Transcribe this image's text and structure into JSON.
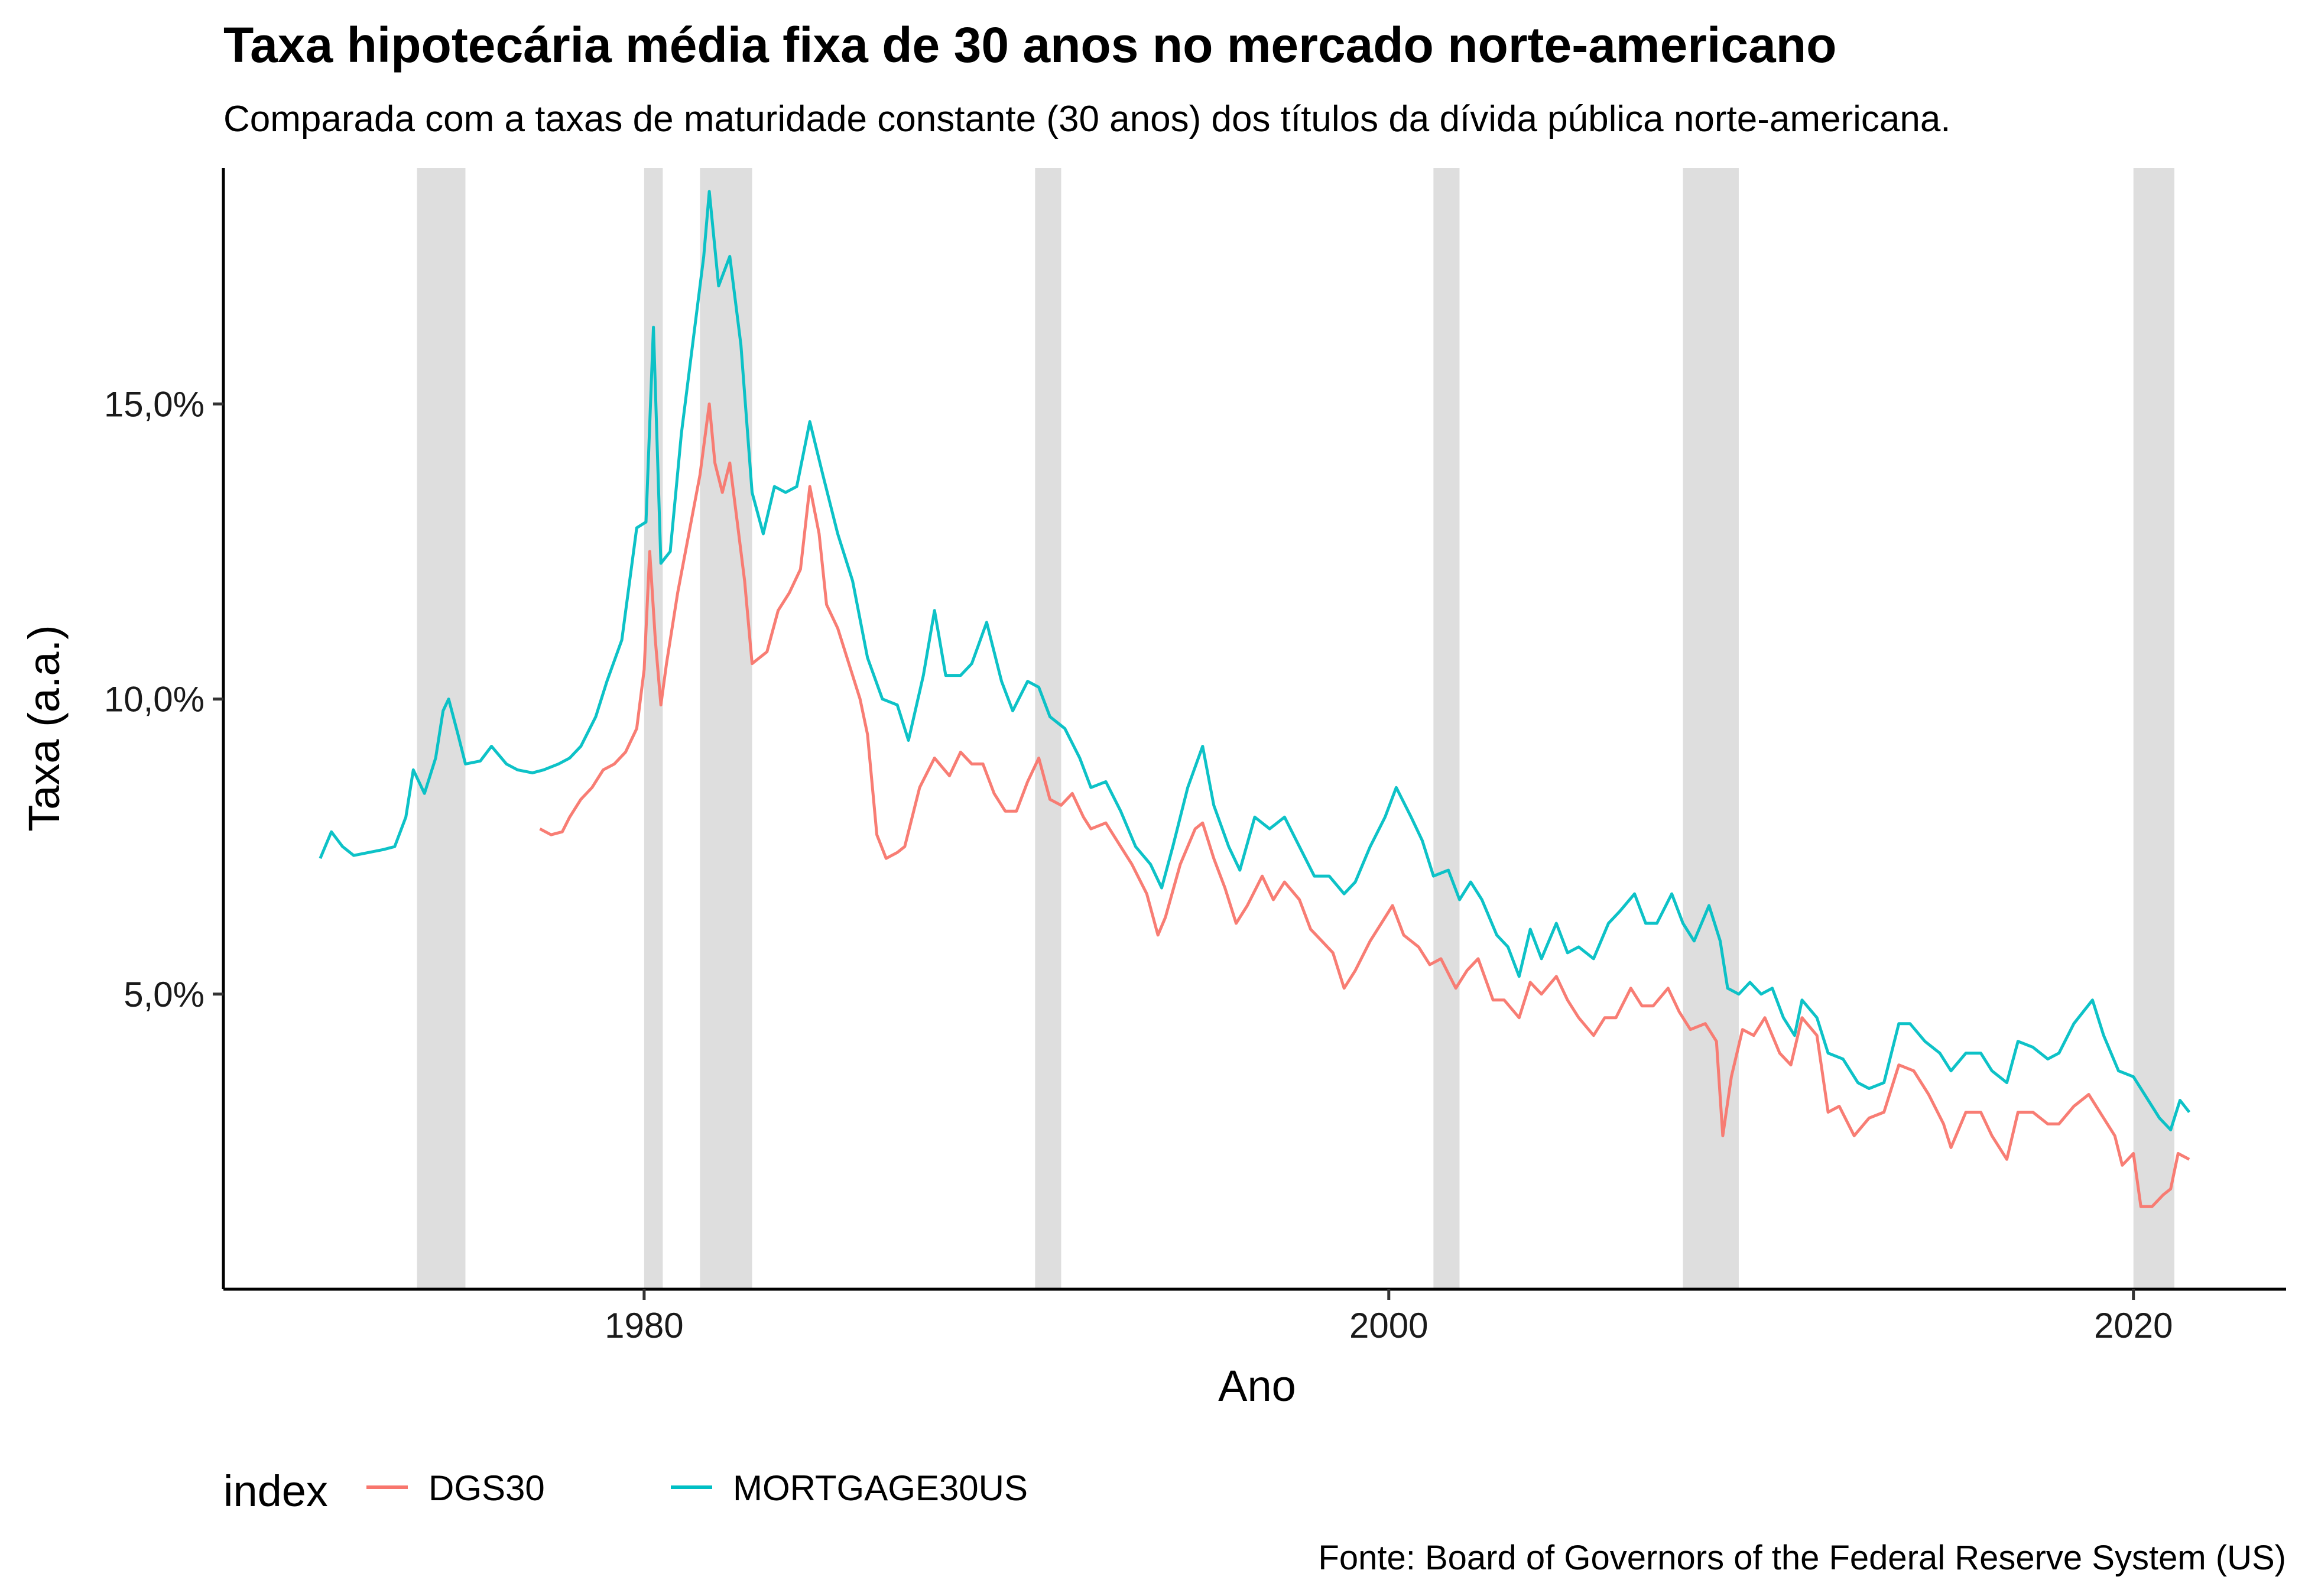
{
  "chart_data": {
    "type": "line",
    "title": "Taxa hipotecária média fixa de 30 anos no mercado norte-americano",
    "subtitle": "Comparada com a taxas de maturidade constante (30 anos) dos títulos da dívida pública norte-americana.",
    "xlabel": "Ano",
    "ylabel": "Taxa (a.a.)",
    "caption": "Fonte: Board of Governors of the Federal Reserve System (US)",
    "xlim": [
      1968.7,
      2024.1
    ],
    "ylim": [
      0.0,
      19.0
    ],
    "x_ticks": [
      1980,
      2000,
      2020
    ],
    "x_tick_labels": [
      "1980",
      "2000",
      "2020"
    ],
    "y_ticks": [
      5,
      10,
      15
    ],
    "y_tick_labels": [
      "5,0%",
      "10,0%",
      "15,0%"
    ],
    "legend": {
      "title": "index",
      "position": "bottom-left"
    },
    "grid": false,
    "recessions": [
      [
        1973.9,
        1975.2
      ],
      [
        1980.0,
        1980.5
      ],
      [
        1981.5,
        1982.9
      ],
      [
        1990.5,
        1991.2
      ],
      [
        2001.2,
        2001.9
      ],
      [
        2007.9,
        2009.4
      ],
      [
        2020.0,
        2021.1
      ]
    ],
    "series": [
      {
        "name": "DGS30",
        "color": "#F8766D",
        "points": [
          [
            1977.2,
            7.8
          ],
          [
            1977.5,
            7.7
          ],
          [
            1977.8,
            7.75
          ],
          [
            1978.0,
            8.0
          ],
          [
            1978.3,
            8.3
          ],
          [
            1978.6,
            8.5
          ],
          [
            1978.9,
            8.8
          ],
          [
            1979.2,
            8.9
          ],
          [
            1979.5,
            9.1
          ],
          [
            1979.8,
            9.5
          ],
          [
            1980.0,
            10.5
          ],
          [
            1980.15,
            12.5
          ],
          [
            1980.3,
            11.0
          ],
          [
            1980.45,
            9.9
          ],
          [
            1980.6,
            10.6
          ],
          [
            1980.9,
            11.8
          ],
          [
            1981.2,
            12.8
          ],
          [
            1981.5,
            13.8
          ],
          [
            1981.75,
            15.0
          ],
          [
            1981.9,
            14.0
          ],
          [
            1982.1,
            13.5
          ],
          [
            1982.3,
            14.0
          ],
          [
            1982.5,
            13.0
          ],
          [
            1982.7,
            12.0
          ],
          [
            1982.9,
            10.6
          ],
          [
            1983.3,
            10.8
          ],
          [
            1983.6,
            11.5
          ],
          [
            1983.9,
            11.8
          ],
          [
            1984.2,
            12.2
          ],
          [
            1984.45,
            13.6
          ],
          [
            1984.7,
            12.8
          ],
          [
            1984.9,
            11.6
          ],
          [
            1985.2,
            11.2
          ],
          [
            1985.5,
            10.6
          ],
          [
            1985.8,
            10.0
          ],
          [
            1986.0,
            9.4
          ],
          [
            1986.25,
            7.7
          ],
          [
            1986.5,
            7.3
          ],
          [
            1986.8,
            7.4
          ],
          [
            1987.0,
            7.5
          ],
          [
            1987.4,
            8.5
          ],
          [
            1987.8,
            9.0
          ],
          [
            1988.2,
            8.7
          ],
          [
            1988.5,
            9.1
          ],
          [
            1988.8,
            8.9
          ],
          [
            1989.1,
            8.9
          ],
          [
            1989.4,
            8.4
          ],
          [
            1989.7,
            8.1
          ],
          [
            1990.0,
            8.1
          ],
          [
            1990.3,
            8.6
          ],
          [
            1990.6,
            9.0
          ],
          [
            1990.9,
            8.3
          ],
          [
            1991.2,
            8.2
          ],
          [
            1991.5,
            8.4
          ],
          [
            1991.8,
            8.0
          ],
          [
            1992.0,
            7.8
          ],
          [
            1992.4,
            7.9
          ],
          [
            1992.8,
            7.5
          ],
          [
            1993.1,
            7.2
          ],
          [
            1993.5,
            6.7
          ],
          [
            1993.8,
            6.0
          ],
          [
            1994.0,
            6.3
          ],
          [
            1994.4,
            7.2
          ],
          [
            1994.8,
            7.8
          ],
          [
            1995.0,
            7.9
          ],
          [
            1995.3,
            7.3
          ],
          [
            1995.6,
            6.8
          ],
          [
            1995.9,
            6.2
          ],
          [
            1996.2,
            6.5
          ],
          [
            1996.6,
            7.0
          ],
          [
            1996.9,
            6.6
          ],
          [
            1997.2,
            6.9
          ],
          [
            1997.6,
            6.6
          ],
          [
            1997.9,
            6.1
          ],
          [
            1998.2,
            5.9
          ],
          [
            1998.5,
            5.7
          ],
          [
            1998.8,
            5.1
          ],
          [
            1999.1,
            5.4
          ],
          [
            1999.5,
            5.9
          ],
          [
            1999.8,
            6.2
          ],
          [
            2000.1,
            6.5
          ],
          [
            2000.4,
            6.0
          ],
          [
            2000.8,
            5.8
          ],
          [
            2001.1,
            5.5
          ],
          [
            2001.4,
            5.6
          ],
          [
            2001.8,
            5.1
          ],
          [
            2002.1,
            5.4
          ],
          [
            2002.4,
            5.6
          ],
          [
            2002.8,
            4.9
          ],
          [
            2003.1,
            4.9
          ],
          [
            2003.5,
            4.6
          ],
          [
            2003.8,
            5.2
          ],
          [
            2004.1,
            5.0
          ],
          [
            2004.5,
            5.3
          ],
          [
            2004.8,
            4.9
          ],
          [
            2005.1,
            4.6
          ],
          [
            2005.5,
            4.3
          ],
          [
            2005.8,
            4.6
          ],
          [
            2006.1,
            4.6
          ],
          [
            2006.5,
            5.1
          ],
          [
            2006.8,
            4.8
          ],
          [
            2007.1,
            4.8
          ],
          [
            2007.5,
            5.1
          ],
          [
            2007.8,
            4.7
          ],
          [
            2008.1,
            4.4
          ],
          [
            2008.5,
            4.5
          ],
          [
            2008.8,
            4.2
          ],
          [
            2008.97,
            2.6
          ],
          [
            2009.2,
            3.6
          ],
          [
            2009.5,
            4.4
          ],
          [
            2009.8,
            4.3
          ],
          [
            2010.1,
            4.6
          ],
          [
            2010.5,
            4.0
          ],
          [
            2010.8,
            3.8
          ],
          [
            2011.1,
            4.6
          ],
          [
            2011.5,
            4.3
          ],
          [
            2011.8,
            3.0
          ],
          [
            2012.1,
            3.1
          ],
          [
            2012.5,
            2.6
          ],
          [
            2012.9,
            2.9
          ],
          [
            2013.3,
            3.0
          ],
          [
            2013.7,
            3.8
          ],
          [
            2014.1,
            3.7
          ],
          [
            2014.5,
            3.3
          ],
          [
            2014.9,
            2.8
          ],
          [
            2015.1,
            2.4
          ],
          [
            2015.5,
            3.0
          ],
          [
            2015.9,
            3.0
          ],
          [
            2016.2,
            2.6
          ],
          [
            2016.6,
            2.2
          ],
          [
            2016.9,
            3.0
          ],
          [
            2017.3,
            3.0
          ],
          [
            2017.7,
            2.8
          ],
          [
            2018.0,
            2.8
          ],
          [
            2018.4,
            3.1
          ],
          [
            2018.8,
            3.3
          ],
          [
            2019.1,
            3.0
          ],
          [
            2019.5,
            2.6
          ],
          [
            2019.7,
            2.1
          ],
          [
            2020.0,
            2.3
          ],
          [
            2020.2,
            1.4
          ],
          [
            2020.5,
            1.4
          ],
          [
            2020.8,
            1.6
          ],
          [
            2021.0,
            1.7
          ],
          [
            2021.2,
            2.3
          ],
          [
            2021.5,
            2.2
          ]
        ]
      },
      {
        "name": "MORTGAGE30US",
        "color": "#00BFC4",
        "points": [
          [
            1971.3,
            7.3
          ],
          [
            1971.6,
            7.75
          ],
          [
            1971.9,
            7.5
          ],
          [
            1972.2,
            7.35
          ],
          [
            1972.6,
            7.4
          ],
          [
            1973.0,
            7.45
          ],
          [
            1973.3,
            7.5
          ],
          [
            1973.6,
            8.0
          ],
          [
            1973.8,
            8.8
          ],
          [
            1974.1,
            8.4
          ],
          [
            1974.4,
            9.0
          ],
          [
            1974.6,
            9.8
          ],
          [
            1974.75,
            10.0
          ],
          [
            1975.0,
            9.4
          ],
          [
            1975.2,
            8.9
          ],
          [
            1975.6,
            8.95
          ],
          [
            1975.9,
            9.2
          ],
          [
            1976.3,
            8.9
          ],
          [
            1976.6,
            8.8
          ],
          [
            1977.0,
            8.75
          ],
          [
            1977.3,
            8.8
          ],
          [
            1977.7,
            8.9
          ],
          [
            1978.0,
            9.0
          ],
          [
            1978.3,
            9.2
          ],
          [
            1978.7,
            9.7
          ],
          [
            1979.0,
            10.3
          ],
          [
            1979.4,
            11.0
          ],
          [
            1979.8,
            12.9
          ],
          [
            1980.05,
            13.0
          ],
          [
            1980.25,
            16.3
          ],
          [
            1980.45,
            12.3
          ],
          [
            1980.7,
            12.5
          ],
          [
            1981.0,
            14.5
          ],
          [
            1981.3,
            16.0
          ],
          [
            1981.6,
            17.5
          ],
          [
            1981.75,
            18.6
          ],
          [
            1982.0,
            17.0
          ],
          [
            1982.3,
            17.5
          ],
          [
            1982.6,
            16.0
          ],
          [
            1982.9,
            13.5
          ],
          [
            1983.2,
            12.8
          ],
          [
            1983.5,
            13.6
          ],
          [
            1983.8,
            13.5
          ],
          [
            1984.1,
            13.6
          ],
          [
            1984.45,
            14.7
          ],
          [
            1984.8,
            13.8
          ],
          [
            1985.2,
            12.8
          ],
          [
            1985.6,
            12.0
          ],
          [
            1986.0,
            10.7
          ],
          [
            1986.4,
            10.0
          ],
          [
            1986.8,
            9.9
          ],
          [
            1987.1,
            9.3
          ],
          [
            1987.5,
            10.4
          ],
          [
            1987.8,
            11.5
          ],
          [
            1988.1,
            10.4
          ],
          [
            1988.5,
            10.4
          ],
          [
            1988.8,
            10.6
          ],
          [
            1989.2,
            11.3
          ],
          [
            1989.6,
            10.3
          ],
          [
            1989.9,
            9.8
          ],
          [
            1990.3,
            10.3
          ],
          [
            1990.6,
            10.2
          ],
          [
            1990.9,
            9.7
          ],
          [
            1991.3,
            9.5
          ],
          [
            1991.7,
            9.0
          ],
          [
            1992.0,
            8.5
          ],
          [
            1992.4,
            8.6
          ],
          [
            1992.8,
            8.1
          ],
          [
            1993.2,
            7.5
          ],
          [
            1993.6,
            7.2
          ],
          [
            1993.9,
            6.8
          ],
          [
            1994.2,
            7.5
          ],
          [
            1994.6,
            8.5
          ],
          [
            1995.0,
            9.2
          ],
          [
            1995.3,
            8.2
          ],
          [
            1995.7,
            7.5
          ],
          [
            1996.0,
            7.1
          ],
          [
            1996.4,
            8.0
          ],
          [
            1996.8,
            7.8
          ],
          [
            1997.2,
            8.0
          ],
          [
            1997.6,
            7.5
          ],
          [
            1998.0,
            7.0
          ],
          [
            1998.4,
            7.0
          ],
          [
            1998.8,
            6.7
          ],
          [
            1999.1,
            6.9
          ],
          [
            1999.5,
            7.5
          ],
          [
            1999.9,
            8.0
          ],
          [
            2000.2,
            8.5
          ],
          [
            2000.6,
            8.0
          ],
          [
            2000.9,
            7.6
          ],
          [
            2001.2,
            7.0
          ],
          [
            2001.6,
            7.1
          ],
          [
            2001.9,
            6.6
          ],
          [
            2002.2,
            6.9
          ],
          [
            2002.5,
            6.6
          ],
          [
            2002.9,
            6.0
          ],
          [
            2003.2,
            5.8
          ],
          [
            2003.5,
            5.3
          ],
          [
            2003.8,
            6.1
          ],
          [
            2004.1,
            5.6
          ],
          [
            2004.5,
            6.2
          ],
          [
            2004.8,
            5.7
          ],
          [
            2005.1,
            5.8
          ],
          [
            2005.5,
            5.6
          ],
          [
            2005.9,
            6.2
          ],
          [
            2006.2,
            6.4
          ],
          [
            2006.6,
            6.7
          ],
          [
            2006.9,
            6.2
          ],
          [
            2007.2,
            6.2
          ],
          [
            2007.6,
            6.7
          ],
          [
            2007.9,
            6.2
          ],
          [
            2008.2,
            5.9
          ],
          [
            2008.6,
            6.5
          ],
          [
            2008.9,
            5.9
          ],
          [
            2009.1,
            5.1
          ],
          [
            2009.4,
            5.0
          ],
          [
            2009.7,
            5.2
          ],
          [
            2010.0,
            5.0
          ],
          [
            2010.3,
            5.1
          ],
          [
            2010.6,
            4.6
          ],
          [
            2010.9,
            4.3
          ],
          [
            2011.1,
            4.9
          ],
          [
            2011.5,
            4.6
          ],
          [
            2011.8,
            4.0
          ],
          [
            2012.2,
            3.9
          ],
          [
            2012.6,
            3.5
          ],
          [
            2012.9,
            3.4
          ],
          [
            2013.3,
            3.5
          ],
          [
            2013.7,
            4.5
          ],
          [
            2014.0,
            4.5
          ],
          [
            2014.4,
            4.2
          ],
          [
            2014.8,
            4.0
          ],
          [
            2015.1,
            3.7
          ],
          [
            2015.5,
            4.0
          ],
          [
            2015.9,
            4.0
          ],
          [
            2016.2,
            3.7
          ],
          [
            2016.6,
            3.5
          ],
          [
            2016.9,
            4.2
          ],
          [
            2017.3,
            4.1
          ],
          [
            2017.7,
            3.9
          ],
          [
            2018.0,
            4.0
          ],
          [
            2018.4,
            4.5
          ],
          [
            2018.9,
            4.9
          ],
          [
            2019.2,
            4.3
          ],
          [
            2019.6,
            3.7
          ],
          [
            2020.0,
            3.6
          ],
          [
            2020.3,
            3.3
          ],
          [
            2020.7,
            2.9
          ],
          [
            2021.0,
            2.7
          ],
          [
            2021.25,
            3.2
          ],
          [
            2021.5,
            3.0
          ]
        ]
      }
    ]
  }
}
